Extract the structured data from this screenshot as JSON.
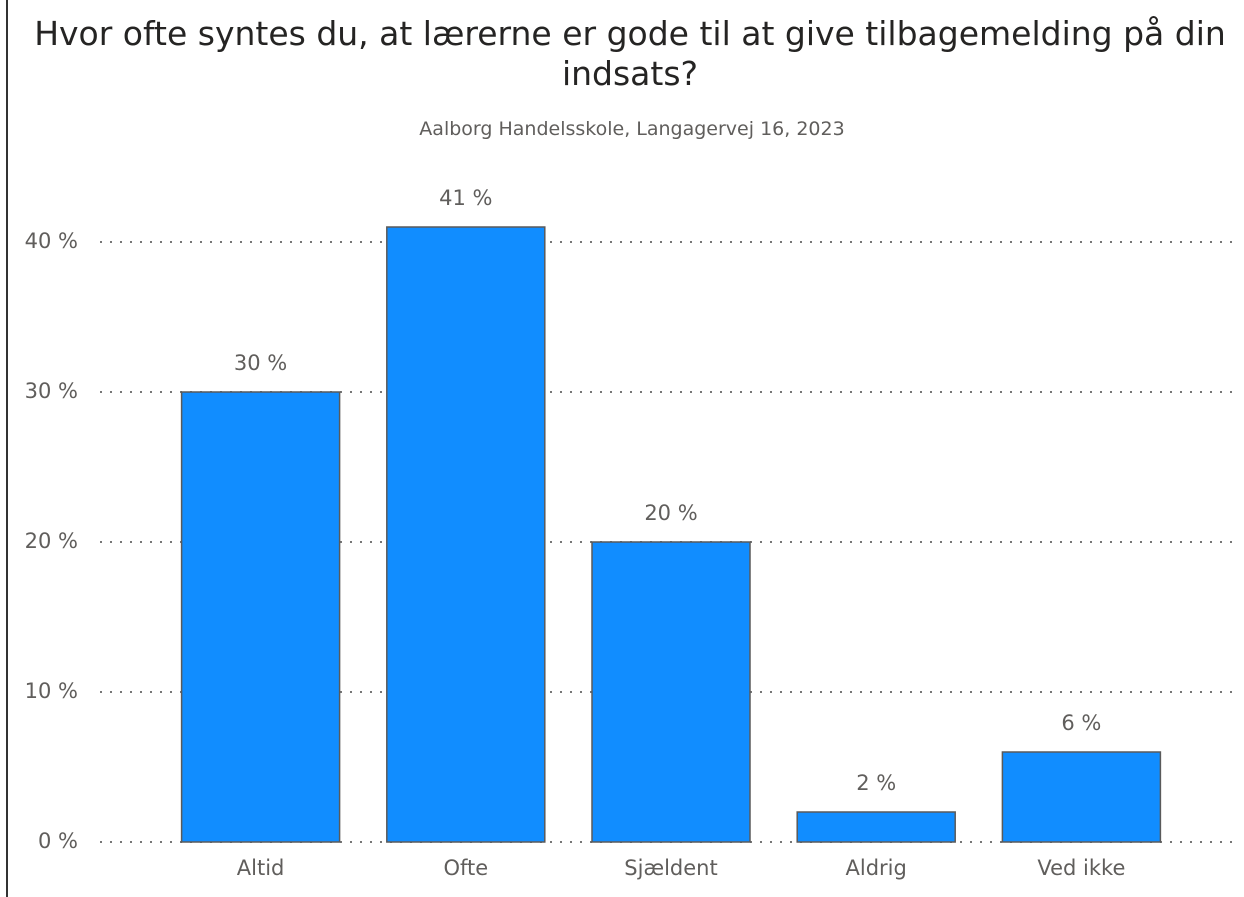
{
  "chart_data": {
    "type": "bar",
    "title": "Hvor ofte syntes du, at lærerne er gode til at give tilbagemelding på din indsats?",
    "subtitle": "Aalborg Handelsskole, Langagervej 16, 2023",
    "categories": [
      "Altid",
      "Ofte",
      "Sjældent",
      "Aldrig",
      "Ved ikke"
    ],
    "values": [
      30,
      41,
      20,
      2,
      6
    ],
    "value_labels": [
      "30 %",
      "41 %",
      "20 %",
      "2 %",
      "6 %"
    ],
    "color": "#118dff",
    "ylim": [
      0,
      45
    ],
    "yticks": [
      {
        "value": 0,
        "label": "0 %"
      },
      {
        "value": 10,
        "label": "10 %"
      },
      {
        "value": 20,
        "label": "20 %"
      },
      {
        "value": 30,
        "label": "30 %"
      },
      {
        "value": 40,
        "label": "40 %"
      }
    ],
    "grid": true
  }
}
